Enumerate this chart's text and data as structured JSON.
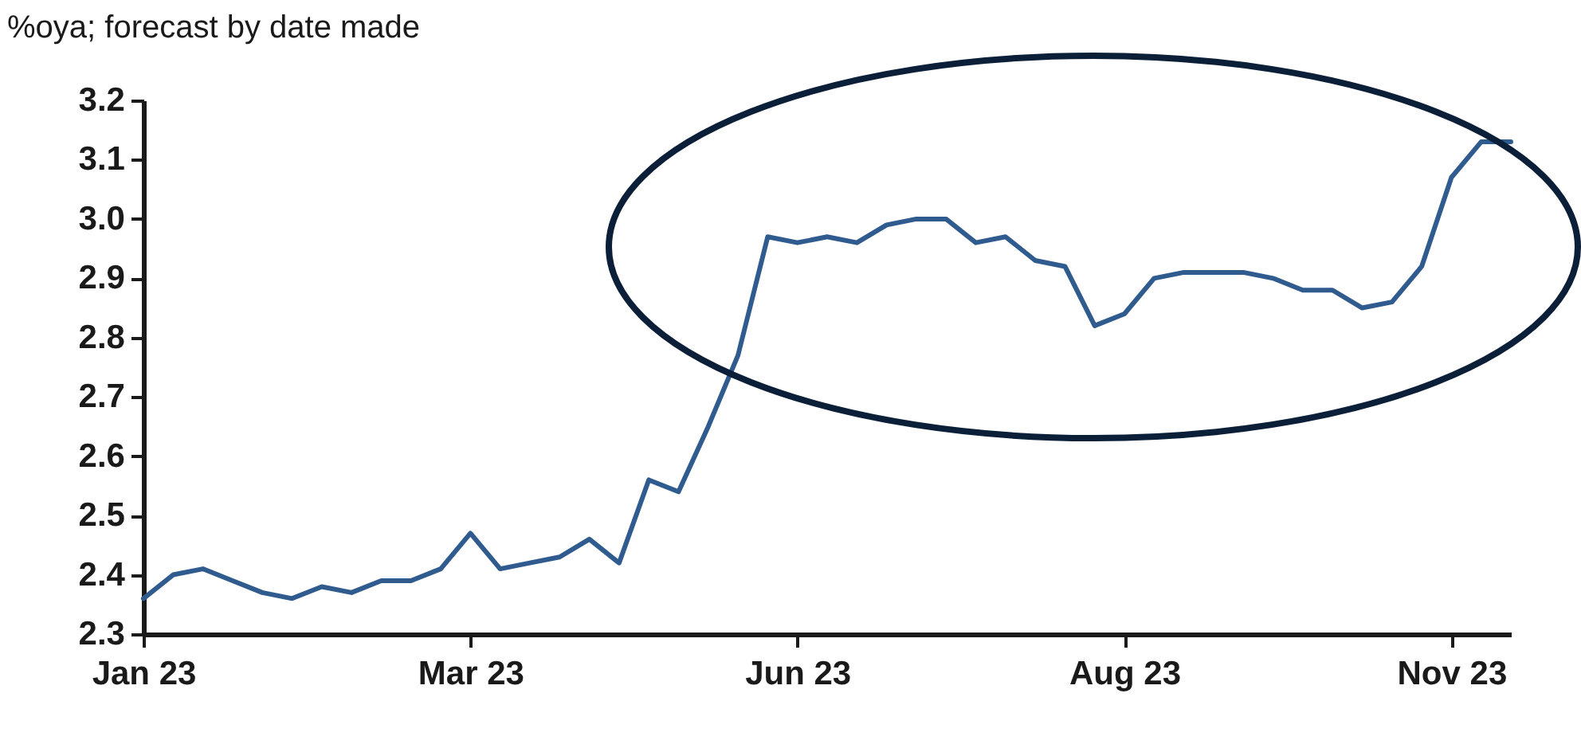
{
  "chart_data": {
    "type": "line",
    "ylabel": "%oya; forecast by date made",
    "categories": [
      "Jan 23",
      null,
      null,
      null,
      null,
      null,
      null,
      null,
      null,
      null,
      null,
      "Mar 23",
      null,
      null,
      null,
      null,
      null,
      null,
      null,
      null,
      null,
      null,
      "Jun 23",
      null,
      null,
      null,
      null,
      null,
      null,
      null,
      null,
      null,
      null,
      "Aug 23",
      null,
      null,
      null,
      null,
      null,
      null,
      null,
      null,
      null,
      null,
      "Nov 23",
      null,
      null
    ],
    "series": [
      {
        "color": "#2f5b8e",
        "values": [
          2.36,
          2.4,
          2.41,
          2.39,
          2.37,
          2.36,
          2.38,
          2.37,
          2.39,
          2.39,
          2.41,
          2.47,
          2.41,
          2.42,
          2.43,
          2.46,
          2.42,
          2.56,
          2.54,
          2.65,
          2.77,
          2.97,
          2.96,
          2.97,
          2.96,
          2.99,
          3.0,
          3.0,
          2.96,
          2.97,
          2.93,
          2.92,
          2.82,
          2.84,
          2.9,
          2.91,
          2.91,
          2.91,
          2.9,
          2.88,
          2.88,
          2.85,
          2.86,
          2.92,
          3.07,
          3.13,
          3.13
        ]
      }
    ],
    "ylim": [
      2.3,
      3.2
    ],
    "yticks": [
      {
        "value": 2.3,
        "label": "2.3"
      },
      {
        "value": 2.4,
        "label": "2.4"
      },
      {
        "value": 2.5,
        "label": "2.5"
      },
      {
        "value": 2.6,
        "label": "2.6"
      },
      {
        "value": 2.7,
        "label": "2.7"
      },
      {
        "value": 2.8,
        "label": "2.8"
      },
      {
        "value": 2.9,
        "label": "2.9"
      },
      {
        "value": 3.0,
        "label": "3.0"
      },
      {
        "value": 3.1,
        "label": "3.1"
      },
      {
        "value": 3.2,
        "label": "3.2"
      }
    ],
    "grid": false,
    "marker": "none",
    "line_style": "solid"
  }
}
